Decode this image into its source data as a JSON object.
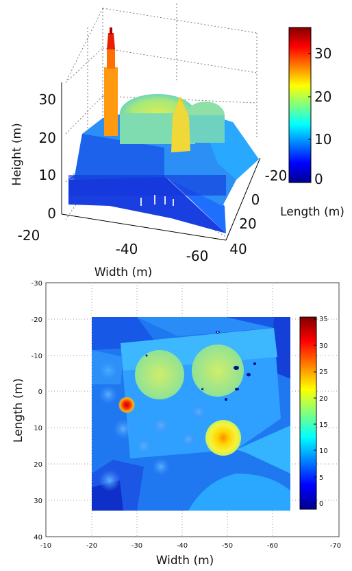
{
  "chart_data": [
    {
      "type": "surface3d",
      "zlabel": "Height (m)",
      "xlabel": "Width (m)",
      "ylabel": "Length (m)",
      "zticks": [
        0,
        10,
        20,
        30
      ],
      "xticks": [
        -20,
        -40,
        -60
      ],
      "yticks": [
        -20,
        0,
        20,
        40
      ],
      "zlim": [
        0,
        36
      ],
      "colorbar": {
        "ticks": [
          0,
          10,
          20,
          30
        ],
        "range": [
          0,
          36
        ],
        "label": "Length (m)"
      },
      "features": [
        {
          "x": -27,
          "y": 3,
          "peak_height": 36
        },
        {
          "x": -48,
          "y": 12,
          "peak_height": 22
        }
      ],
      "colormap": [
        "#00008f",
        "#0000ff",
        "#00ffff",
        "#ffff00",
        "#ff0000",
        "#800000"
      ]
    },
    {
      "type": "heatmap",
      "xlabel": "Width (m)",
      "ylabel": "Length (m)",
      "xticks": [
        -10,
        -20,
        -30,
        -40,
        -50,
        -60,
        -70
      ],
      "yticks": [
        -30,
        -20,
        -10,
        0,
        10,
        20,
        30,
        40
      ],
      "xlim": [
        -10,
        -70
      ],
      "ylim": [
        -30,
        40
      ],
      "data_extent": {
        "x": [
          -20,
          -64
        ],
        "y": [
          -22,
          33
        ]
      },
      "colorbar": {
        "ticks": [
          0,
          5,
          10,
          15,
          20,
          25,
          30,
          35
        ],
        "range": [
          -1,
          36
        ]
      },
      "features": [
        {
          "x": -27,
          "y": 3,
          "value": 35
        },
        {
          "x": -49,
          "y": 12.5,
          "value": 22
        },
        {
          "x": -35,
          "y": -4,
          "value": 17
        },
        {
          "x": -48,
          "y": -4,
          "value": 17
        }
      ],
      "colormap": [
        "#00008f",
        "#0000ff",
        "#00ffff",
        "#ffff00",
        "#ff0000",
        "#800000"
      ]
    }
  ]
}
